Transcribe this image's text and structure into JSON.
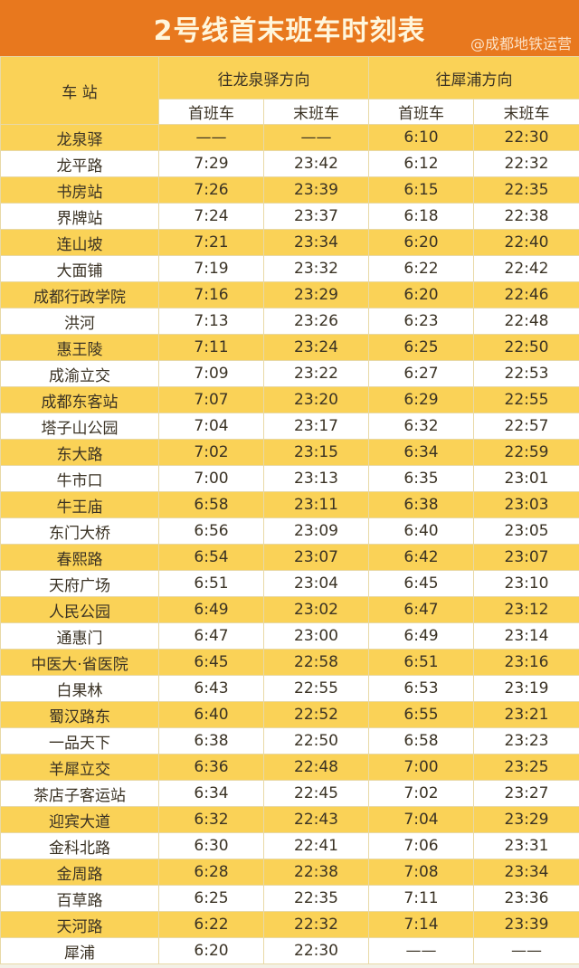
{
  "title": "2号线首末班车时刻表",
  "header": {
    "station": "车 站",
    "dir1": "往龙泉驿方向",
    "dir2": "往犀浦方向",
    "first": "首班车",
    "last": "末班车"
  },
  "colors": {
    "title_bg": "#e8781e",
    "row_yellow": "#fad257",
    "row_white": "#ffffff"
  },
  "rows": [
    [
      "龙泉驿",
      "——",
      "——",
      "6:10",
      "22:30"
    ],
    [
      "龙平路",
      "7:29",
      "23:42",
      "6:12",
      "22:32"
    ],
    [
      "书房站",
      "7:26",
      "23:39",
      "6:15",
      "22:35"
    ],
    [
      "界牌站",
      "7:24",
      "23:37",
      "6:18",
      "22:38"
    ],
    [
      "连山坡",
      "7:21",
      "23:34",
      "6:20",
      "22:40"
    ],
    [
      "大面铺",
      "7:19",
      "23:32",
      "6:22",
      "22:42"
    ],
    [
      "成都行政学院",
      "7:16",
      "23:29",
      "6:20",
      "22:46"
    ],
    [
      "洪河",
      "7:13",
      "23:26",
      "6:23",
      "22:48"
    ],
    [
      "惠王陵",
      "7:11",
      "23:24",
      "6:25",
      "22:50"
    ],
    [
      "成渝立交",
      "7:09",
      "23:22",
      "6:27",
      "22:53"
    ],
    [
      "成都东客站",
      "7:07",
      "23:20",
      "6:29",
      "22:55"
    ],
    [
      "塔子山公园",
      "7:04",
      "23:17",
      "6:32",
      "22:57"
    ],
    [
      "东大路",
      "7:02",
      "23:15",
      "6:34",
      "22:59"
    ],
    [
      "牛市口",
      "7:00",
      "23:13",
      "6:35",
      "23:01"
    ],
    [
      "牛王庙",
      "6:58",
      "23:11",
      "6:38",
      "23:03"
    ],
    [
      "东门大桥",
      "6:56",
      "23:09",
      "6:40",
      "23:05"
    ],
    [
      "春熙路",
      "6:54",
      "23:07",
      "6:42",
      "23:07"
    ],
    [
      "天府广场",
      "6:51",
      "23:04",
      "6:45",
      "23:10"
    ],
    [
      "人民公园",
      "6:49",
      "23:02",
      "6:47",
      "23:12"
    ],
    [
      "通惠门",
      "6:47",
      "23:00",
      "6:49",
      "23:14"
    ],
    [
      "中医大·省医院",
      "6:45",
      "22:58",
      "6:51",
      "23:16"
    ],
    [
      "白果林",
      "6:43",
      "22:55",
      "6:53",
      "23:19"
    ],
    [
      "蜀汉路东",
      "6:40",
      "22:52",
      "6:55",
      "23:21"
    ],
    [
      "一品天下",
      "6:38",
      "22:50",
      "6:58",
      "23:23"
    ],
    [
      "羊犀立交",
      "6:36",
      "22:48",
      "7:00",
      "23:25"
    ],
    [
      "茶店子客运站",
      "6:34",
      "22:45",
      "7:02",
      "23:27"
    ],
    [
      "迎宾大道",
      "6:32",
      "22:43",
      "7:04",
      "23:29"
    ],
    [
      "金科北路",
      "6:30",
      "22:41",
      "7:06",
      "23:31"
    ],
    [
      "金周路",
      "6:28",
      "22:38",
      "7:08",
      "23:34"
    ],
    [
      "百草路",
      "6:25",
      "22:35",
      "7:11",
      "23:36"
    ],
    [
      "天河路",
      "6:22",
      "22:32",
      "7:14",
      "23:39"
    ],
    [
      "犀浦",
      "6:20",
      "22:30",
      "——",
      "——"
    ]
  ],
  "watermark": "@成都地铁运营"
}
